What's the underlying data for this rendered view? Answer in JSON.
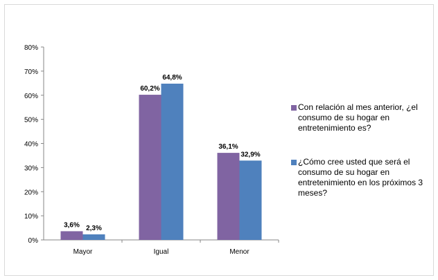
{
  "chart_data": {
    "type": "bar",
    "categories": [
      "Mayor",
      "Igual",
      "Menor"
    ],
    "series": [
      {
        "name": "Con relación al mes anterior, ¿el consumo de su hogar en entretenimiento es?",
        "values": [
          3.6,
          60.2,
          36.1
        ],
        "labels": [
          "3,6%",
          "60,2%",
          "36,1%"
        ],
        "color": "#8064a2"
      },
      {
        "name": "¿Cómo cree usted que será el consumo de su hogar en entretenimiento en los próximos 3 meses?",
        "values": [
          2.3,
          64.8,
          32.9
        ],
        "labels": [
          "2,3%",
          "64,8%",
          "32,9%"
        ],
        "color": "#4f81bd"
      }
    ],
    "yticks": [
      "0%",
      "10%",
      "20%",
      "30%",
      "40%",
      "50%",
      "60%",
      "70%",
      "80%"
    ],
    "ylim": [
      0,
      80
    ],
    "grid": false,
    "legend_position": "right"
  }
}
